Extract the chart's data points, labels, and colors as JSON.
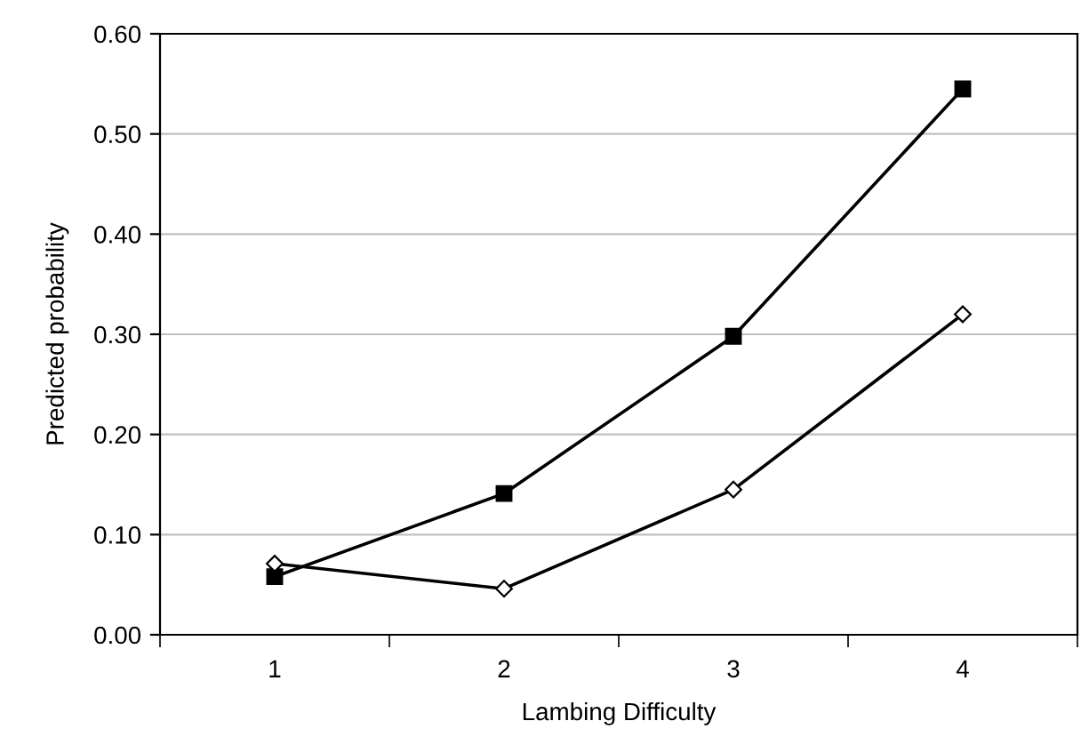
{
  "chart_data": {
    "type": "line",
    "xlabel": "Lambing Difficulty",
    "ylabel": "Predicted probability",
    "categories": [
      "1",
      "2",
      "3",
      "4"
    ],
    "series": [
      {
        "color": "#000000",
        "marker": "square",
        "values": [
          0.058,
          0.141,
          0.298,
          0.545
        ]
      },
      {
        "color": "#000000",
        "marker": "diamond",
        "values": [
          0.071,
          0.046,
          0.145,
          0.32
        ]
      }
    ],
    "ylim": [
      0,
      0.6
    ],
    "yticks": [
      {
        "value": 0,
        "label": "0.00"
      },
      {
        "value": 0.1,
        "label": "0.10"
      },
      {
        "value": 0.2,
        "label": "0.20"
      },
      {
        "value": 0.3,
        "label": "0.30"
      },
      {
        "value": 0.4,
        "label": "0.40"
      },
      {
        "value": 0.5,
        "label": "0.50"
      },
      {
        "value": 0.6,
        "label": "0.60"
      }
    ],
    "grid": "y",
    "line_style": "solid"
  }
}
